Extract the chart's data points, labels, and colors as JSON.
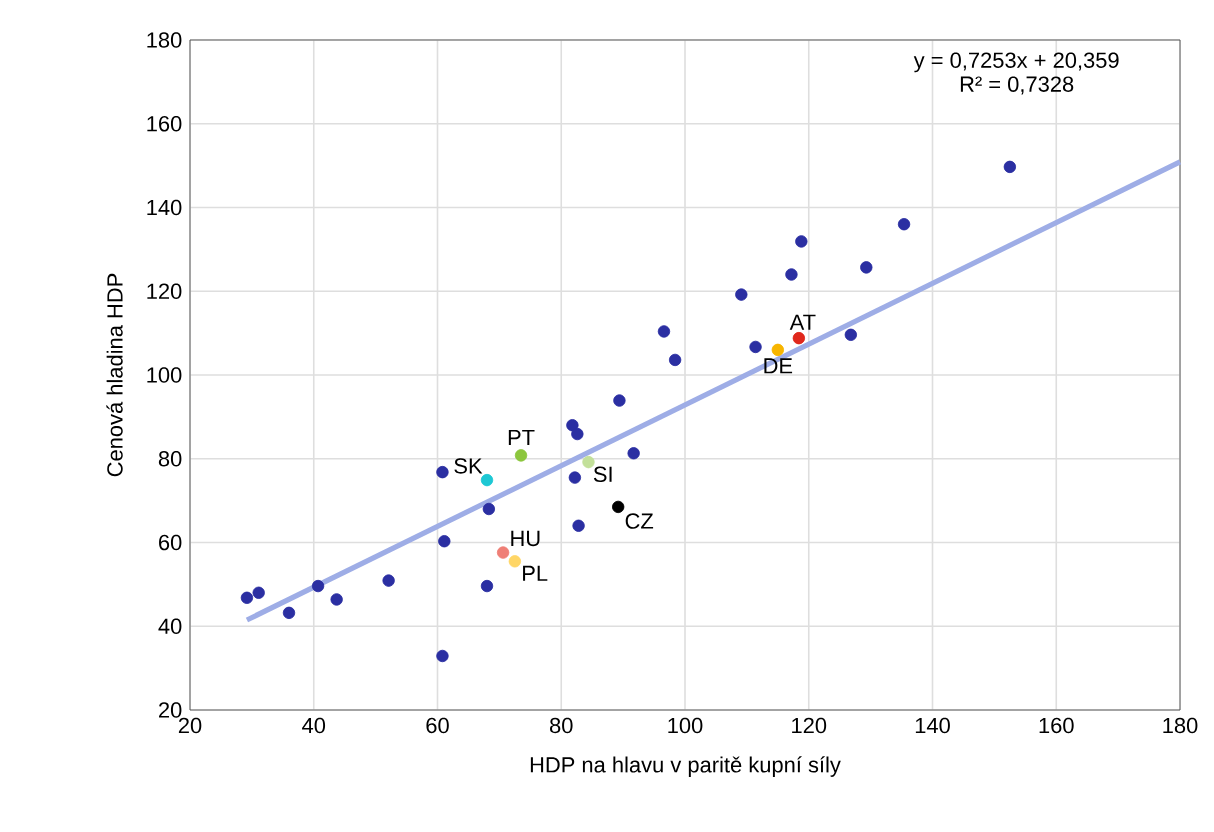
{
  "chart_data": {
    "type": "scatter",
    "xlabel": "HDP na hlavu v paritě kupní síly",
    "ylabel": "Cenová hladina HDP",
    "xlim": [
      20,
      180
    ],
    "ylim": [
      20,
      180
    ],
    "xticks": [
      20,
      40,
      60,
      80,
      100,
      120,
      140,
      160,
      180
    ],
    "yticks": [
      20,
      40,
      60,
      80,
      100,
      120,
      140,
      160,
      180
    ],
    "grid": true,
    "marker": "circle",
    "annotations": [
      "y = 0,7253x + 20,359",
      "R² = 0,7328"
    ],
    "series": [
      {
        "color": "#2b2fa2",
        "x": [
          29.2,
          31.1,
          36.0,
          40.7,
          43.7,
          52.1,
          60.8,
          61.1,
          60.8,
          68.0,
          68.3,
          81.8,
          82.6,
          82.2,
          82.8,
          91.7,
          89.4,
          98.4,
          96.6,
          109.1,
          111.4,
          117.2,
          118.8,
          129.3,
          126.8,
          135.4,
          152.5
        ],
        "values": [
          46.8,
          48.0,
          43.2,
          49.6,
          46.4,
          50.9,
          76.8,
          60.3,
          32.9,
          49.6,
          68.0,
          88.0,
          85.9,
          75.5,
          64.0,
          81.3,
          93.9,
          103.6,
          110.4,
          119.2,
          106.7,
          124.0,
          131.9,
          125.7,
          109.6,
          136.0,
          149.7
        ]
      },
      {
        "name": "SK",
        "color": "#1ec8d4",
        "x": [
          68.0
        ],
        "values": [
          74.9
        ]
      },
      {
        "name": "PT",
        "color": "#8cc63e",
        "x": [
          73.5
        ],
        "values": [
          80.8
        ]
      },
      {
        "name": "HU",
        "color": "#ef7f76",
        "x": [
          70.6
        ],
        "values": [
          57.6
        ]
      },
      {
        "name": "PL",
        "color": "#ffd666",
        "x": [
          72.5
        ],
        "values": [
          55.5
        ]
      },
      {
        "name": "SI",
        "color": "#c3e09a",
        "x": [
          84.4
        ],
        "values": [
          79.2
        ]
      },
      {
        "name": "CZ",
        "color": "#000000",
        "x": [
          89.2
        ],
        "values": [
          68.5
        ]
      },
      {
        "name": "DE",
        "color": "#f7b500",
        "x": [
          115.0
        ],
        "values": [
          106.0
        ]
      },
      {
        "name": "AT",
        "color": "#e0281c",
        "x": [
          118.4
        ],
        "values": [
          108.8
        ]
      },
      {
        "type": "line",
        "marker": "none",
        "color": "#9eade6",
        "x": [
          29.2,
          180
        ],
        "values": [
          41.5,
          150.9
        ]
      }
    ]
  }
}
